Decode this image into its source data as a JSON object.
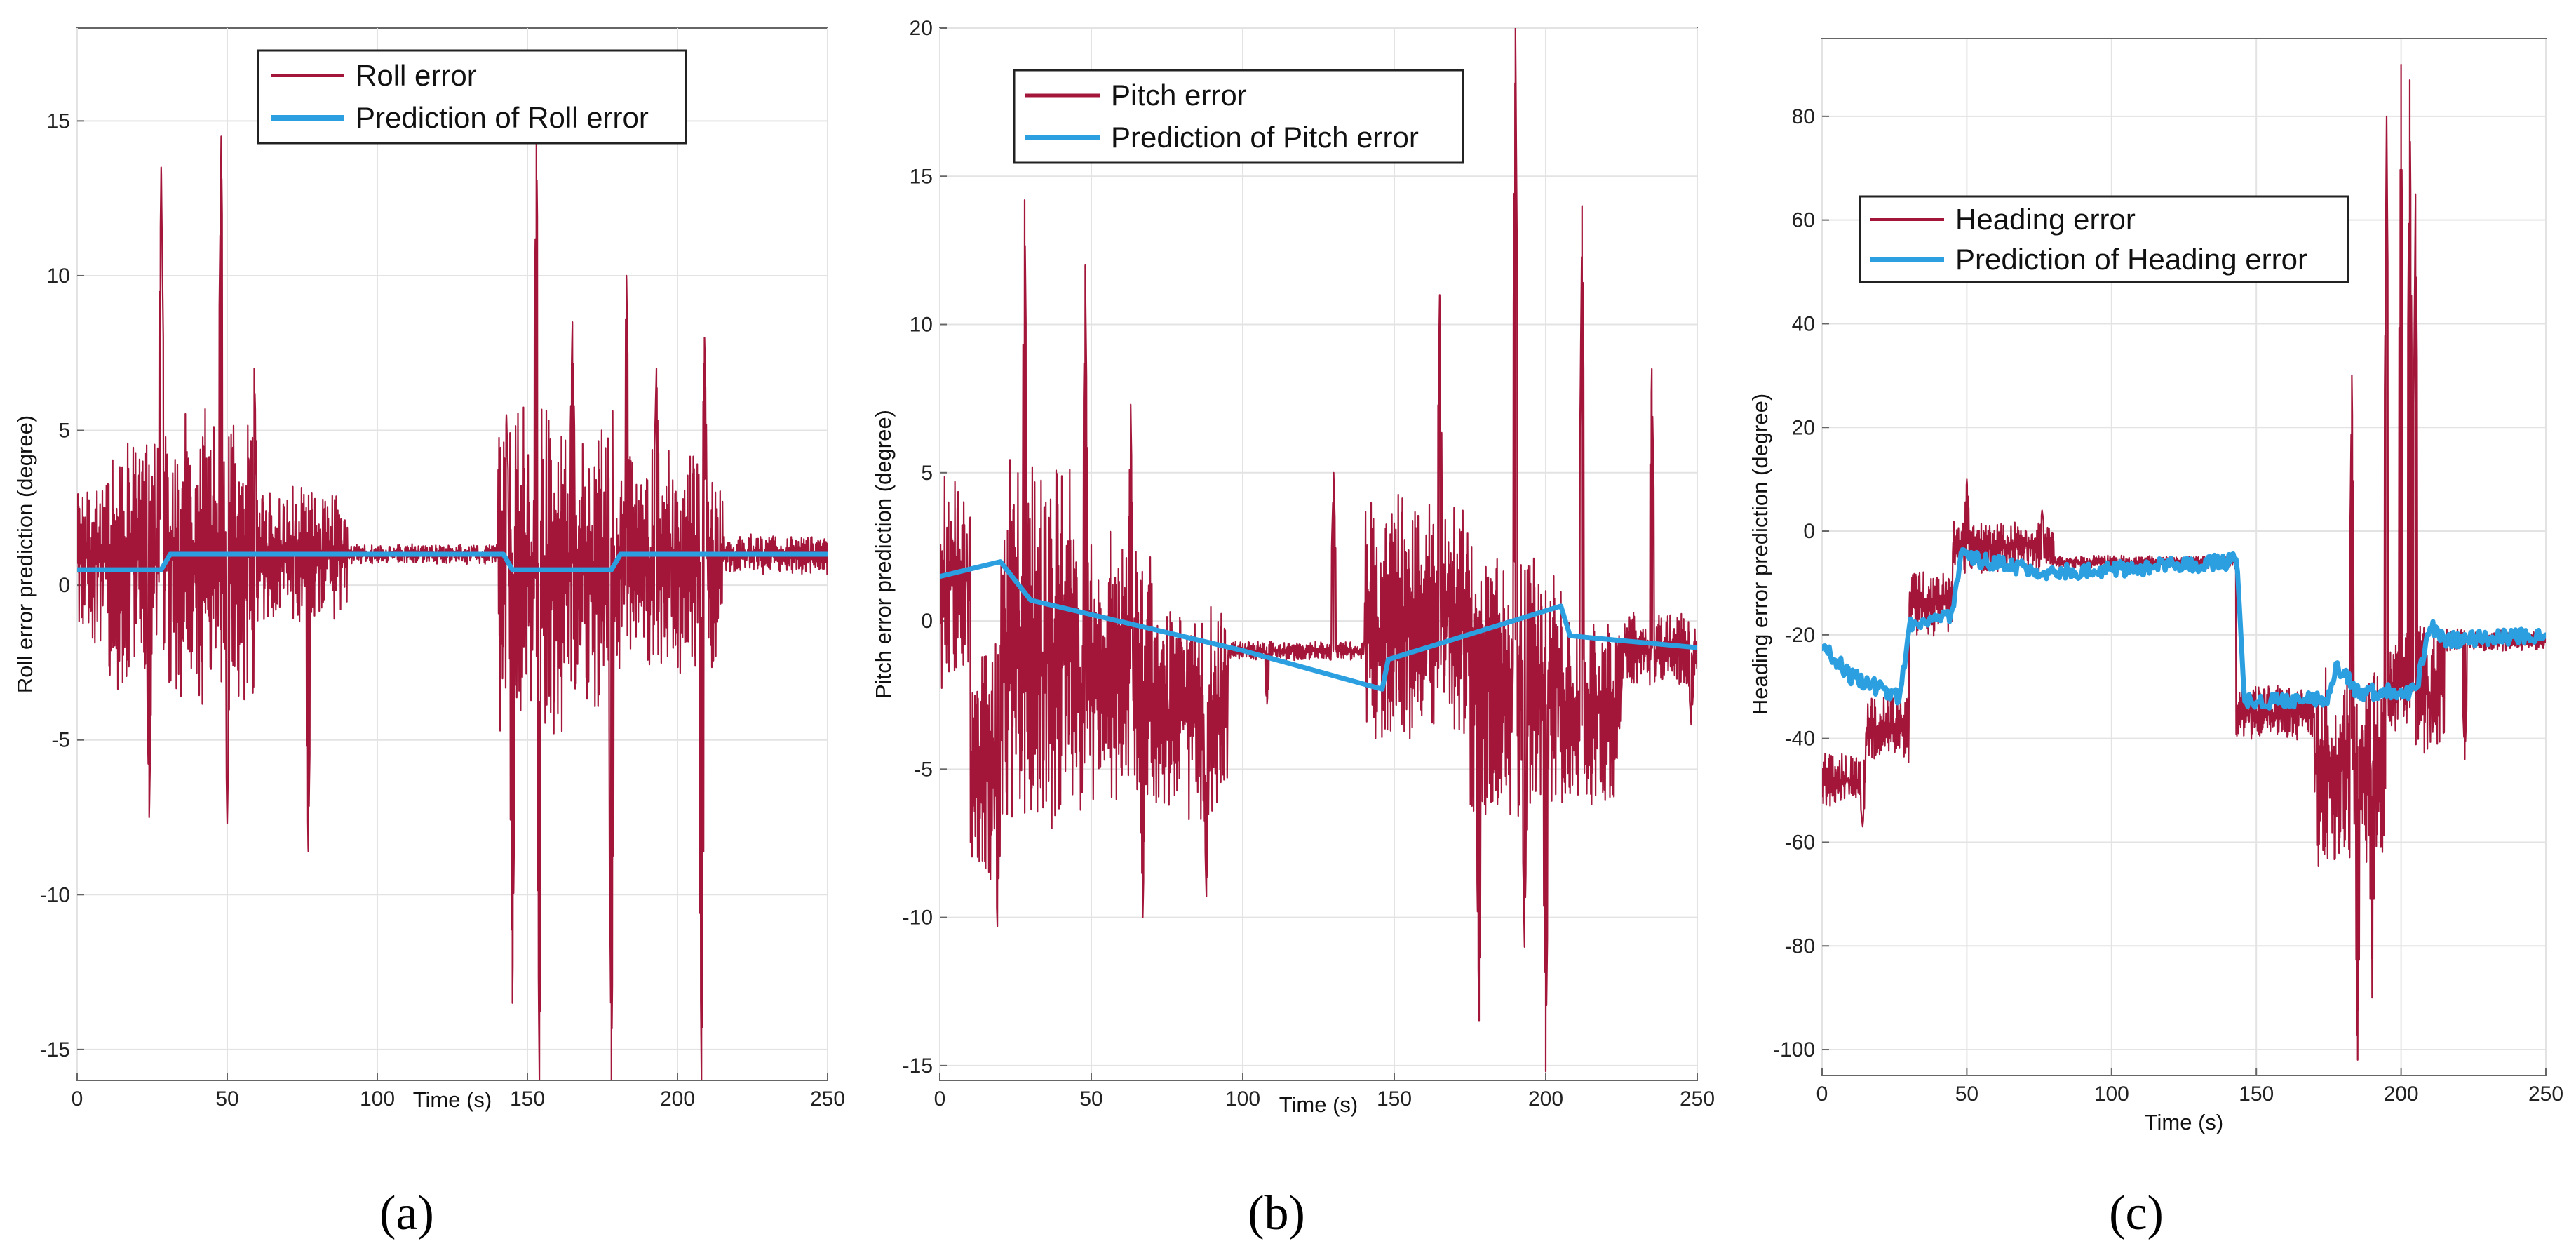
{
  "chart_data": [
    {
      "type": "line",
      "panel": "a",
      "caption": "(a)",
      "xlabel": "Time (s)",
      "ylabel": "Roll error prediction (degree)",
      "xlim": [
        0,
        250
      ],
      "ylim": [
        -16,
        18
      ],
      "xticks": [
        0,
        50,
        100,
        150,
        200,
        250
      ],
      "yticks": [
        -15,
        -10,
        -5,
        0,
        5,
        10,
        15
      ],
      "legend_position": "top-center",
      "series": [
        {
          "name": "Roll error",
          "color": "#a3163a",
          "style": "noisy",
          "segments": [
            {
              "x0": 0,
              "x1": 10,
              "mean": 0.8,
              "amp": 2.6
            },
            {
              "x0": 10,
              "x1": 30,
              "mean": 1.0,
              "amp": 4.0
            },
            {
              "x0": 30,
              "x1": 60,
              "mean": 1.0,
              "amp": 4.5
            },
            {
              "x0": 60,
              "x1": 90,
              "mean": 1.0,
              "amp": 2.0
            },
            {
              "x0": 90,
              "x1": 140,
              "mean": 1.0,
              "amp": 0.3
            },
            {
              "x0": 140,
              "x1": 180,
              "mean": 0.5,
              "amp": 5.0
            },
            {
              "x0": 180,
              "x1": 215,
              "mean": 0.8,
              "amp": 3.5
            },
            {
              "x0": 215,
              "x1": 250,
              "mean": 1.0,
              "amp": 0.6
            }
          ],
          "spikes": [
            [
              24,
              -7.5
            ],
            [
              28,
              13.5
            ],
            [
              48,
              14.5
            ],
            [
              50,
              -7.7
            ],
            [
              59,
              7.0
            ],
            [
              77,
              -8.6
            ],
            [
              143,
              5.5
            ],
            [
              145,
              -13.5
            ],
            [
              153,
              14.5
            ],
            [
              154,
              -16.0
            ],
            [
              165,
              8.5
            ],
            [
              178,
              -16.0
            ],
            [
              183,
              10.0
            ],
            [
              193,
              7.0
            ],
            [
              208,
              -16.0
            ],
            [
              209,
              8.0
            ]
          ]
        },
        {
          "name": "Prediction of Roll error",
          "color": "#2b9fe0",
          "style": "smooth",
          "points": [
            [
              0,
              0.5
            ],
            [
              28,
              0.5
            ],
            [
              31,
              1.0
            ],
            [
              142,
              1.0
            ],
            [
              145,
              0.5
            ],
            [
              178,
              0.5
            ],
            [
              181,
              1.0
            ],
            [
              250,
              1.0
            ]
          ]
        }
      ]
    },
    {
      "type": "line",
      "panel": "b",
      "caption": "(b)",
      "xlabel": "Time (s)",
      "ylabel": "Pitch error prediction (degree)",
      "xlim": [
        0,
        250
      ],
      "ylim": [
        -15.5,
        20
      ],
      "xticks": [
        0,
        50,
        100,
        150,
        200,
        250
      ],
      "yticks": [
        -15,
        -10,
        -5,
        0,
        5,
        10,
        15,
        20
      ],
      "legend_position": "top-left",
      "series": [
        {
          "name": "Pitch error",
          "color": "#a3163a",
          "style": "noisy",
          "segments": [
            {
              "x0": 0,
              "x1": 10,
              "mean": 1.5,
              "amp": 3.5
            },
            {
              "x0": 10,
              "x1": 20,
              "mean": -5.0,
              "amp": 4.0
            },
            {
              "x0": 20,
              "x1": 45,
              "mean": -1.0,
              "amp": 6.0
            },
            {
              "x0": 45,
              "x1": 70,
              "mean": -2.0,
              "amp": 4.5
            },
            {
              "x0": 70,
              "x1": 95,
              "mean": -3.0,
              "amp": 3.5
            },
            {
              "x0": 95,
              "x1": 140,
              "mean": -1.0,
              "amp": 0.3
            },
            {
              "x0": 140,
              "x1": 175,
              "mean": 0.0,
              "amp": 4.0
            },
            {
              "x0": 175,
              "x1": 205,
              "mean": -2.0,
              "amp": 4.5
            },
            {
              "x0": 205,
              "x1": 225,
              "mean": -3.0,
              "amp": 3.0
            },
            {
              "x0": 225,
              "x1": 250,
              "mean": -1.0,
              "amp": 1.2
            }
          ],
          "spikes": [
            [
              19,
              -10.3
            ],
            [
              28,
              14.2
            ],
            [
              48,
              12.0
            ],
            [
              63,
              7.3
            ],
            [
              67,
              -10.0
            ],
            [
              88,
              -9.3
            ],
            [
              108,
              -2.8
            ],
            [
              130,
              5.0
            ],
            [
              145,
              -1.5
            ],
            [
              165,
              11.0
            ],
            [
              178,
              -13.5
            ],
            [
              190,
              20.0
            ],
            [
              193,
              -11.0
            ],
            [
              200,
              -15.2
            ],
            [
              212,
              14.0
            ],
            [
              235,
              8.5
            ],
            [
              248,
              -3.5
            ]
          ]
        },
        {
          "name": "Prediction of Pitch error",
          "color": "#2b9fe0",
          "style": "smooth",
          "points": [
            [
              0,
              1.5
            ],
            [
              20,
              2.0
            ],
            [
              30,
              0.7
            ],
            [
              100,
              -1.0
            ],
            [
              146,
              -2.3
            ],
            [
              148,
              -1.3
            ],
            [
              205,
              0.5
            ],
            [
              208,
              -0.5
            ],
            [
              250,
              -0.9
            ]
          ]
        }
      ]
    },
    {
      "type": "line",
      "panel": "c",
      "caption": "(c)",
      "xlabel": "Time (s)",
      "ylabel": "Heading error prediction (degree)",
      "xlim": [
        0,
        250
      ],
      "ylim": [
        -105,
        95
      ],
      "xticks": [
        0,
        50,
        100,
        150,
        200,
        250
      ],
      "yticks": [
        -100,
        -80,
        -60,
        -40,
        -20,
        0,
        20,
        40,
        60,
        80
      ],
      "legend_position": "top-left",
      "series": [
        {
          "name": "Heading error",
          "color": "#a3163a",
          "style": "noisy",
          "segments": [
            {
              "x0": 0,
              "x1": 15,
              "mean": -48,
              "amp": 5
            },
            {
              "x0": 15,
              "x1": 30,
              "mean": -38,
              "amp": 6
            },
            {
              "x0": 30,
              "x1": 45,
              "mean": -14,
              "amp": 6
            },
            {
              "x0": 45,
              "x1": 80,
              "mean": -3,
              "amp": 5
            },
            {
              "x0": 80,
              "x1": 143,
              "mean": -6,
              "amp": 1.2
            },
            {
              "x0": 143,
              "x1": 170,
              "mean": -35,
              "amp": 5
            },
            {
              "x0": 170,
              "x1": 195,
              "mean": -45,
              "amp": 18
            },
            {
              "x0": 195,
              "x1": 215,
              "mean": -30,
              "amp": 12
            },
            {
              "x0": 215,
              "x1": 250,
              "mean": -21,
              "amp": 2
            }
          ],
          "spikes": [
            [
              14,
              -57
            ],
            [
              50,
              10
            ],
            [
              76,
              4
            ],
            [
              183,
              30
            ],
            [
              185,
              -102
            ],
            [
              190,
              -90
            ],
            [
              195,
              80
            ],
            [
              200,
              90
            ],
            [
              203,
              87
            ],
            [
              205,
              65
            ],
            [
              210,
              -35
            ],
            [
              222,
              -44
            ]
          ]
        },
        {
          "name": "Prediction of Heading error",
          "color": "#2b9fe0",
          "style": "smooth",
          "points": [
            [
              0,
              -22
            ],
            [
              10,
              -28
            ],
            [
              27,
              -32
            ],
            [
              30,
              -18
            ],
            [
              45,
              -16
            ],
            [
              48,
              -5
            ],
            [
              80,
              -8
            ],
            [
              140,
              -6
            ],
            [
              143,
              -4
            ],
            [
              146,
              -33
            ],
            [
              175,
              -32
            ],
            [
              178,
              -26
            ],
            [
              185,
              -31
            ],
            [
              205,
              -31
            ],
            [
              210,
              -18
            ],
            [
              215,
              -21
            ],
            [
              250,
              -20
            ]
          ]
        }
      ]
    }
  ]
}
